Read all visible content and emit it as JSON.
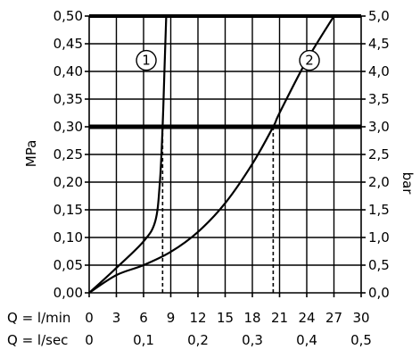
{
  "chart_data": {
    "type": "line",
    "x_unit_label_primary": "Q = l/min",
    "x_unit_label_secondary": "Q = l/sec",
    "x_ticks_primary": [
      "0",
      "3",
      "6",
      "9",
      "12",
      "15",
      "18",
      "21",
      "24",
      "27",
      "30"
    ],
    "x_ticks_secondary": [
      "0",
      "0,1",
      "0,2",
      "0,3",
      "0,4",
      "0,5"
    ],
    "x_ticks_secondary_values": [
      0,
      6,
      12,
      18,
      24,
      30
    ],
    "ylabel_left": "MPa",
    "ylabel_right": "bar",
    "y_ticks_left": [
      "0,00",
      "0,05",
      "0,10",
      "0,15",
      "0,20",
      "0,25",
      "0,30",
      "0,35",
      "0,40",
      "0,45",
      "0,50"
    ],
    "y_ticks_right": [
      "0,0",
      "0,5",
      "1,0",
      "1,5",
      "2,0",
      "2,5",
      "3,0",
      "3,5",
      "4,0",
      "4,5",
      "5,0"
    ],
    "xlim": [
      0,
      30
    ],
    "ylim": [
      0,
      0.5
    ],
    "grid": true,
    "reference_line_y": 0.3,
    "series": [
      {
        "name": "1",
        "x": [
          0,
          3,
          6,
          7.3,
          7.8,
          8.1,
          8.3,
          8.4,
          8.5
        ],
        "y": [
          0,
          0.045,
          0.093,
          0.13,
          0.2,
          0.3,
          0.4,
          0.45,
          0.5
        ],
        "marker_x_at_ref": 8.1
      },
      {
        "name": "2",
        "x": [
          0,
          3,
          6,
          9,
          12,
          15,
          18,
          20.3,
          21,
          24,
          27
        ],
        "y": [
          0,
          0.032,
          0.05,
          0.074,
          0.11,
          0.162,
          0.233,
          0.3,
          0.325,
          0.42,
          0.5
        ],
        "marker_x_at_ref": 20.3
      }
    ],
    "colors": {
      "line": "#000000",
      "grid": "#000000",
      "background": "#ffffff"
    }
  }
}
